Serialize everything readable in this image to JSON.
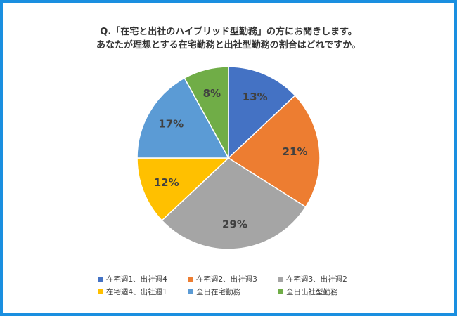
{
  "title_lines": [
    "Q.「在宅と出社のハイブリッド型勤務」の方にお聞きします。",
    "あなたが理想とする在宅勤務と出社型勤務の割合はどれですか。"
  ],
  "colors": {
    "frame": "#1a8fe0"
  },
  "chart_data": {
    "type": "pie",
    "categories": [
      "在宅週1、出社週4",
      "在宅週2、出社週3",
      "在宅週3、出社週2",
      "在宅週4、出社週1",
      "全日在宅勤務",
      "全日出社型勤務"
    ],
    "values": [
      13,
      21,
      29,
      12,
      17,
      8
    ],
    "labels": [
      "13%",
      "21%",
      "29%",
      "12%",
      "17%",
      "8%"
    ],
    "colors": [
      "#4472c4",
      "#ed7d31",
      "#a5a5a5",
      "#ffc000",
      "#5b9bd5",
      "#70ad47"
    ],
    "start_angle": "12 o'clock",
    "direction": "clockwise",
    "legend_position": "bottom"
  }
}
